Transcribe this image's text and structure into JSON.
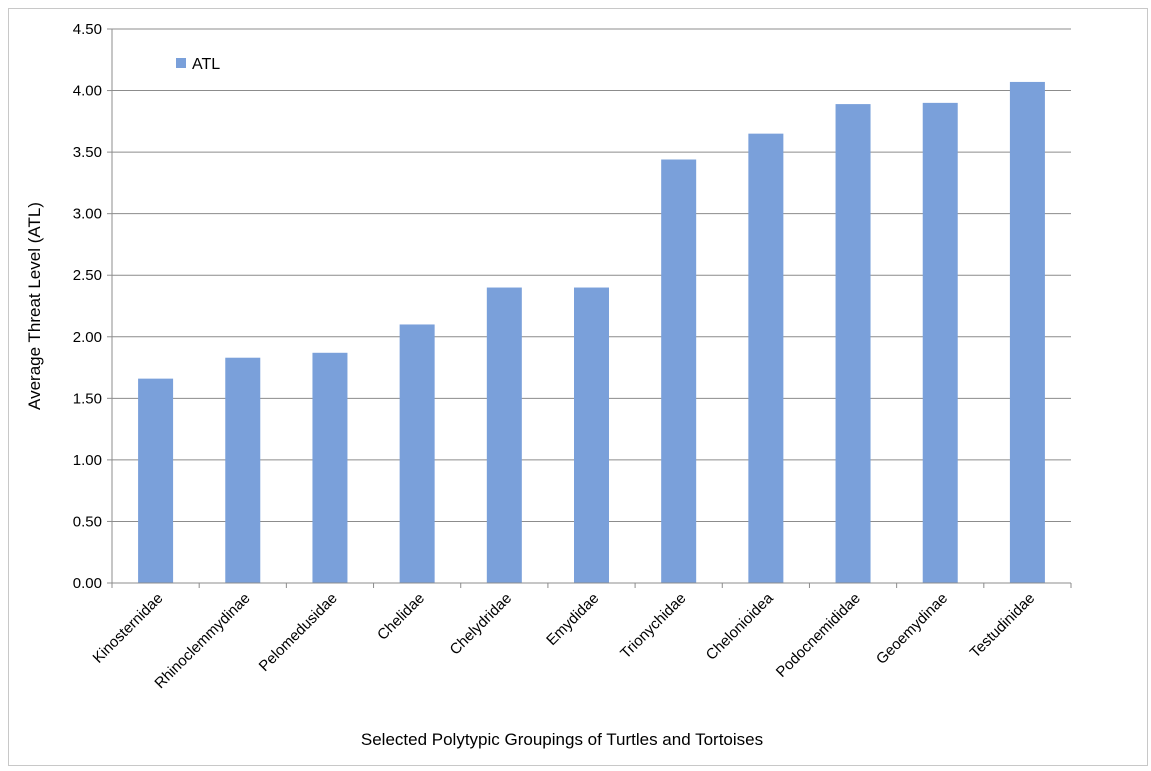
{
  "chart_data": {
    "type": "bar",
    "categories": [
      "Kinosternidae",
      "Rhinoclemmydinae",
      "Pelomedusidae",
      "Chelidae",
      "Chelydridae",
      "Emydidae",
      "Trionychidae",
      "Chelonioidea",
      "Podocnemididae",
      "Geoemydinae",
      "Testudinidae"
    ],
    "series": [
      {
        "name": "ATL",
        "color": "#7aa0da",
        "values": [
          1.66,
          1.83,
          1.87,
          2.1,
          2.4,
          2.4,
          3.44,
          3.65,
          3.89,
          3.9,
          4.07
        ]
      }
    ],
    "title": "",
    "xlabel": "Selected Polytypic Groupings of Turtles and Tortoises",
    "ylabel": "Average Threat Level (ATL)",
    "ylim": [
      0,
      4.5
    ],
    "yticks": [
      0,
      0.5,
      1.0,
      1.5,
      2.0,
      2.5,
      3.0,
      3.5,
      4.0,
      4.5
    ],
    "ytick_labels": [
      "0.00",
      "0.50",
      "1.00",
      "1.50",
      "2.00",
      "2.50",
      "3.00",
      "3.50",
      "4.00",
      "4.50"
    ],
    "grid": true,
    "legend": "top-left",
    "colors": {
      "bar": "#7aa0da",
      "grid": "#8c8c8c",
      "axis": "#8c8c8c"
    }
  }
}
